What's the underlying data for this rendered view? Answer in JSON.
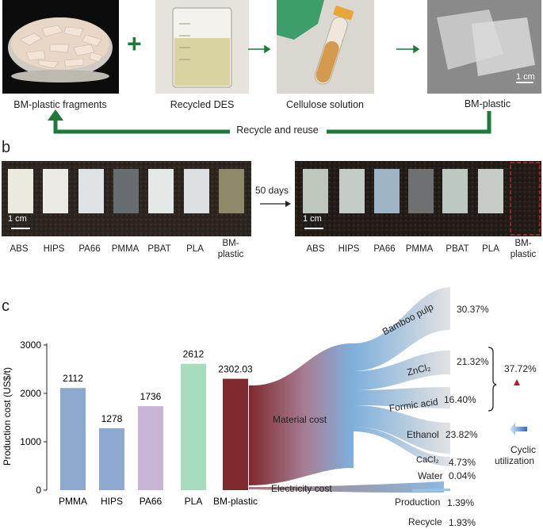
{
  "panel_a": {
    "letter": "a",
    "captions": [
      "BM-plastic fragments",
      "Recycled DES",
      "Cellulose solution",
      "BM-plastic"
    ],
    "plus": "+",
    "scale_bar": "1 cm",
    "recycle_label": "Recycle and reuse"
  },
  "panel_b": {
    "letter": "b",
    "arrow_label": "50 days",
    "scale_bar": "1 cm",
    "samples_before": [
      "ABS",
      "HIPS",
      "PA66",
      "PMMA",
      "PBAT",
      "PLA",
      "BM-\nplastic"
    ],
    "samples_after": [
      "ABS",
      "HIPS",
      "PA66",
      "PMMA",
      "PBAT",
      "PLA",
      "BM-\nplastic"
    ]
  },
  "panel_c": {
    "letter": "c",
    "material_cost_label": "Material cost",
    "electricity_cost_label": "Electricity cost",
    "bracket_total": "37.72%",
    "cyclic_label_line1": "Cyclic",
    "cyclic_label_line2": "utilization",
    "sankey_items": [
      {
        "name": "Bamboo pulp",
        "pct": "30.37%"
      },
      {
        "name": "ZnCl₂",
        "pct": "21.32%"
      },
      {
        "name": "Formic acid",
        "pct": "16.40%"
      },
      {
        "name": "Ethanol",
        "pct": "23.82%"
      },
      {
        "name": "CaCl₂",
        "pct": "4.73%"
      },
      {
        "name": "Water",
        "pct": "0.04%"
      },
      {
        "name": "Production",
        "pct": "1.39%"
      },
      {
        "name": "Recycle",
        "pct": "1.93%"
      }
    ],
    "colors": {
      "pmma": "#8ea9cf",
      "hips": "#8ea9cf",
      "pa66": "#c9b5d6",
      "pla": "#a8dcbf",
      "bm": "#7f2a2e",
      "flow_blue": "#7fb0dc",
      "arrow_red": "#b81e2a"
    }
  },
  "chart_data": {
    "type": "bar",
    "categories": [
      "PMMA",
      "HIPS",
      "PA66",
      "PLA",
      "BM-plastic"
    ],
    "values": [
      2112,
      1278,
      1736,
      2612,
      2302.03
    ],
    "value_labels": [
      "2112",
      "1278",
      "1736",
      "2612",
      "2302.03"
    ],
    "ylabel": "Production cost (US$/t)",
    "ylim": [
      0,
      3000
    ],
    "yticks": [
      0,
      1000,
      2000,
      3000
    ],
    "grid": false
  }
}
